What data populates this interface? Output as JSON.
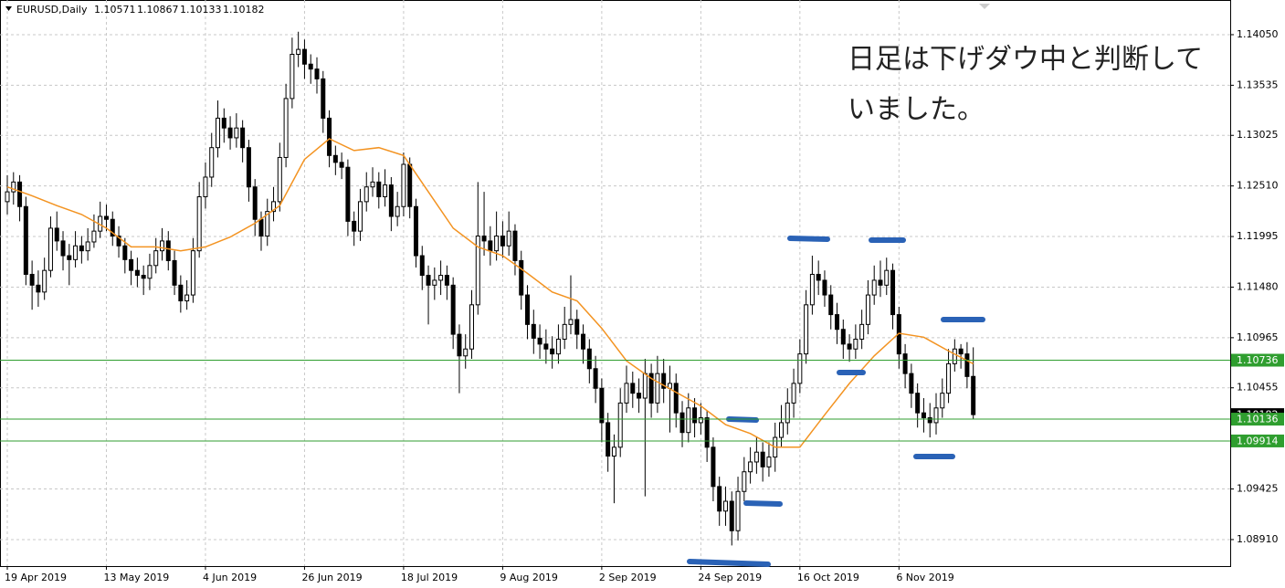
{
  "header": {
    "symbol": "EURUSD,Daily"
  },
  "annotation": {
    "lines": [
      "日足は下げダウ中と判断して",
      "いました。"
    ]
  },
  "chart_data": {
    "type": "candlestick",
    "categories": [
      "19 Apr 2019",
      null,
      null,
      null,
      null,
      null,
      null,
      null,
      null,
      null,
      null,
      null,
      null,
      null,
      null,
      null,
      "13 May 2019",
      null,
      null,
      null,
      null,
      null,
      null,
      null,
      null,
      null,
      null,
      null,
      null,
      null,
      null,
      null,
      "4 Jun 2019",
      null,
      null,
      null,
      null,
      null,
      null,
      null,
      null,
      null,
      null,
      null,
      null,
      null,
      null,
      null,
      "26 Jun 2019",
      null,
      null,
      null,
      null,
      null,
      null,
      null,
      null,
      null,
      null,
      null,
      null,
      null,
      null,
      null,
      "18 Jul 2019",
      null,
      null,
      null,
      null,
      null,
      null,
      null,
      null,
      null,
      null,
      null,
      null,
      null,
      null,
      null,
      "9 Aug 2019",
      null,
      null,
      null,
      null,
      null,
      null,
      null,
      null,
      null,
      null,
      null,
      null,
      null,
      null,
      null,
      "2 Sep 2019",
      null,
      null,
      null,
      null,
      null,
      null,
      null,
      null,
      null,
      null,
      null,
      null,
      null,
      null,
      null,
      "24 Sep 2019",
      null,
      null,
      null,
      null,
      null,
      null,
      null,
      null,
      null,
      null,
      null,
      null,
      null,
      null,
      null,
      "16 Oct 2019",
      null,
      null,
      null,
      null,
      null,
      null,
      null,
      null,
      null,
      null,
      null,
      null,
      null,
      null,
      null,
      "6 Nov 2019",
      null,
      null,
      null,
      null,
      null,
      null,
      null,
      null,
      null,
      null,
      null,
      null
    ],
    "open": [
      1.1235,
      1.1245,
      1.1255,
      1.123,
      1.1161,
      1.115,
      1.1143,
      1.1165,
      1.1208,
      1.1195,
      1.118,
      1.1176,
      1.119,
      1.1185,
      1.1194,
      1.1205,
      1.122,
      1.1217,
      1.12,
      1.119,
      1.1176,
      1.1165,
      1.116,
      1.1157,
      1.117,
      1.1185,
      1.1195,
      1.1175,
      1.115,
      1.1134,
      1.114,
      1.1185,
      1.124,
      1.126,
      1.129,
      1.132,
      1.131,
      1.13,
      1.131,
      1.129,
      1.125,
      1.1217,
      1.12,
      1.1225,
      1.1235,
      1.128,
      1.134,
      1.1385,
      1.139,
      1.1375,
      1.137,
      1.136,
      1.132,
      1.1282,
      1.1275,
      1.127,
      1.1215,
      1.1205,
      1.1235,
      1.125,
      1.1255,
      1.124,
      1.1252,
      1.122,
      1.123,
      1.1273,
      1.123,
      1.118,
      1.116,
      1.115,
      1.1155,
      1.116,
      1.115,
      1.11,
      1.1078,
      1.1085,
      1.113,
      1.12,
      1.1195,
      1.1185,
      1.12,
      1.119,
      1.1205,
      1.1175,
      1.114,
      1.111,
      1.1096,
      1.109,
      1.1085,
      1.108,
      1.1095,
      1.111,
      1.1115,
      1.11,
      1.1085,
      1.1065,
      1.1045,
      1.101,
      1.0976,
      1.0985,
      1.103,
      1.105,
      1.104,
      1.1035,
      1.106,
      1.103,
      1.106,
      1.1045,
      1.105,
      1.102,
      1.1,
      1.1025,
      1.101,
      1.1015,
      1.0985,
      1.0945,
      1.092,
      1.093,
      1.09,
      1.094,
      1.096,
      1.097,
      1.098,
      1.0965,
      1.0975,
      1.0995,
      1.101,
      1.103,
      1.105,
      1.108,
      1.113,
      1.1161,
      1.1155,
      1.114,
      1.112,
      1.1105,
      1.109,
      1.1085,
      1.1095,
      1.111,
      1.114,
      1.1155,
      1.115,
      1.1165,
      1.112,
      1.108,
      1.106,
      1.104,
      1.102,
      1.1015,
      1.101,
      1.1025,
      1.104,
      1.107,
      1.1085,
      1.108,
      1.10571
    ],
    "high": [
      1.1262,
      1.1265,
      1.1262,
      1.124,
      1.1175,
      1.1165,
      1.1178,
      1.122,
      1.1225,
      1.1205,
      1.1192,
      1.1205,
      1.12,
      1.1208,
      1.1222,
      1.1235,
      1.1232,
      1.1225,
      1.121,
      1.1198,
      1.1185,
      1.1178,
      1.117,
      1.1182,
      1.1198,
      1.1208,
      1.1205,
      1.1185,
      1.116,
      1.1155,
      1.1198,
      1.1255,
      1.1275,
      1.1305,
      1.1338,
      1.133,
      1.1322,
      1.1325,
      1.1318,
      1.1298,
      1.1258,
      1.1225,
      1.1238,
      1.125,
      1.1295,
      1.1355,
      1.1402,
      1.1408,
      1.14,
      1.1385,
      1.1382,
      1.1368,
      1.1328,
      1.1292,
      1.1285,
      1.1278,
      1.1225,
      1.1248,
      1.1265,
      1.127,
      1.1265,
      1.1268,
      1.126,
      1.1245,
      1.1285,
      1.128,
      1.1238,
      1.119,
      1.117,
      1.1168,
      1.1175,
      1.117,
      1.1158,
      1.111,
      1.11,
      1.1145,
      1.1255,
      1.1245,
      1.121,
      1.1225,
      1.1215,
      1.1225,
      1.1212,
      1.1185,
      1.115,
      1.1125,
      1.111,
      1.1105,
      1.1098,
      1.111,
      1.1128,
      1.116,
      1.1125,
      1.111,
      1.1095,
      1.1078,
      1.1055,
      1.102,
      1.0998,
      1.1045,
      1.1068,
      1.1062,
      1.1055,
      1.1075,
      1.107,
      1.1078,
      1.1075,
      1.1068,
      1.106,
      1.1032,
      1.104,
      1.1035,
      1.103,
      1.1022,
      1.0995,
      1.0955,
      1.0945,
      1.094,
      1.0955,
      1.0975,
      1.0985,
      1.0995,
      1.099,
      1.099,
      1.101,
      1.1028,
      1.1045,
      1.1065,
      1.1095,
      1.1145,
      1.118,
      1.1175,
      1.1165,
      1.115,
      1.1132,
      1.1115,
      1.11,
      1.111,
      1.1125,
      1.1155,
      1.117,
      1.1175,
      1.1178,
      1.1172,
      1.1128,
      1.109,
      1.107,
      1.105,
      1.1035,
      1.103,
      1.104,
      1.1055,
      1.1085,
      1.1095,
      1.109,
      1.1092,
      1.10867
    ],
    "low": [
      1.1222,
      1.1232,
      1.1215,
      1.115,
      1.1125,
      1.1128,
      1.1135,
      1.1158,
      1.1185,
      1.1165,
      1.115,
      1.1168,
      1.1172,
      1.1175,
      1.1188,
      1.1198,
      1.1205,
      1.119,
      1.1178,
      1.1162,
      1.115,
      1.1148,
      1.114,
      1.1145,
      1.1162,
      1.1175,
      1.1165,
      1.114,
      1.1122,
      1.1125,
      1.1132,
      1.1178,
      1.1228,
      1.125,
      1.128,
      1.1295,
      1.1288,
      1.129,
      1.1275,
      1.1235,
      1.12,
      1.1185,
      1.119,
      1.1215,
      1.1225,
      1.127,
      1.133,
      1.1372,
      1.136,
      1.1355,
      1.1345,
      1.1305,
      1.127,
      1.1262,
      1.1258,
      1.12,
      1.119,
      1.1195,
      1.1225,
      1.124,
      1.1228,
      1.123,
      1.1205,
      1.121,
      1.122,
      1.1218,
      1.1168,
      1.1145,
      1.111,
      1.1135,
      1.114,
      1.1135,
      1.1085,
      1.104,
      1.1065,
      1.1075,
      1.112,
      1.118,
      1.117,
      1.1175,
      1.1178,
      1.118,
      1.116,
      1.1125,
      1.1095,
      1.108,
      1.1075,
      1.107,
      1.1065,
      1.107,
      1.1085,
      1.11,
      1.1085,
      1.107,
      1.105,
      1.103,
      1.099,
      1.096,
      1.0928,
      1.0975,
      1.102,
      1.1025,
      1.102,
      1.0935,
      1.1015,
      1.102,
      1.103,
      1.1,
      1.1005,
      1.0985,
      1.099,
      1.0995,
      1.0998,
      1.097,
      1.093,
      1.0905,
      1.0905,
      1.0885,
      1.089,
      1.093,
      1.0948,
      1.0958,
      1.095,
      1.0955,
      1.096,
      1.0985,
      1.0998,
      1.1015,
      1.104,
      1.107,
      1.112,
      1.114,
      1.1128,
      1.1105,
      1.109,
      1.1075,
      1.1072,
      1.1075,
      1.1085,
      1.11,
      1.113,
      1.1138,
      1.114,
      1.1105,
      1.1065,
      1.1045,
      1.1025,
      1.1005,
      1.1,
      1.0995,
      1.0998,
      1.1015,
      1.103,
      1.1062,
      1.1065,
      1.1045,
      1.10133
    ],
    "close": [
      1.1245,
      1.1255,
      1.123,
      1.1161,
      1.115,
      1.1143,
      1.1165,
      1.1208,
      1.1195,
      1.118,
      1.1176,
      1.119,
      1.1185,
      1.1194,
      1.1205,
      1.122,
      1.1217,
      1.12,
      1.119,
      1.1176,
      1.1165,
      1.116,
      1.1157,
      1.117,
      1.1185,
      1.1195,
      1.1175,
      1.115,
      1.1134,
      1.114,
      1.1185,
      1.124,
      1.126,
      1.129,
      1.132,
      1.131,
      1.13,
      1.131,
      1.129,
      1.125,
      1.1217,
      1.12,
      1.1225,
      1.1235,
      1.128,
      1.134,
      1.1385,
      1.139,
      1.1375,
      1.137,
      1.136,
      1.132,
      1.1282,
      1.1275,
      1.127,
      1.1215,
      1.1205,
      1.1235,
      1.125,
      1.1255,
      1.124,
      1.1252,
      1.122,
      1.123,
      1.1273,
      1.123,
      1.118,
      1.116,
      1.115,
      1.1155,
      1.116,
      1.115,
      1.11,
      1.1078,
      1.1085,
      1.113,
      1.12,
      1.1195,
      1.1185,
      1.12,
      1.119,
      1.1205,
      1.1175,
      1.114,
      1.111,
      1.1096,
      1.109,
      1.1085,
      1.108,
      1.1095,
      1.111,
      1.1115,
      1.11,
      1.1085,
      1.1065,
      1.1045,
      1.101,
      1.0976,
      1.0985,
      1.103,
      1.105,
      1.104,
      1.1035,
      1.106,
      1.103,
      1.106,
      1.1045,
      1.105,
      1.102,
      1.1,
      1.1025,
      1.101,
      1.1015,
      1.0985,
      1.0945,
      1.092,
      1.093,
      1.09,
      1.094,
      1.096,
      1.097,
      1.098,
      1.0965,
      1.0975,
      1.0995,
      1.101,
      1.103,
      1.105,
      1.108,
      1.113,
      1.1161,
      1.1155,
      1.114,
      1.112,
      1.1105,
      1.109,
      1.1085,
      1.1095,
      1.111,
      1.114,
      1.1155,
      1.115,
      1.1165,
      1.112,
      1.108,
      1.106,
      1.104,
      1.102,
      1.1015,
      1.101,
      1.1025,
      1.104,
      1.107,
      1.1085,
      1.108,
      1.1057,
      1.10182
    ],
    "up_color": "#ffffff",
    "down_color": "#000000",
    "ma_x": [
      0,
      4,
      8,
      12,
      16,
      20,
      24,
      28,
      32,
      36,
      40,
      44,
      48,
      52,
      56,
      60,
      64,
      68,
      72,
      76,
      80,
      84,
      88,
      92,
      96,
      100,
      104,
      108,
      112,
      116,
      120,
      124,
      128,
      132,
      136,
      140,
      144,
      148,
      152,
      156
    ],
    "ma_values": [
      1.125,
      1.1241,
      1.1231,
      1.1222,
      1.1208,
      1.1189,
      1.1189,
      1.1185,
      1.1189,
      1.1199,
      1.1213,
      1.1231,
      1.1278,
      1.1299,
      1.1287,
      1.129,
      1.1282,
      1.1245,
      1.1208,
      1.1189,
      1.118,
      1.1162,
      1.1143,
      1.1134,
      1.1106,
      1.1073,
      1.1055,
      1.1041,
      1.1027,
      1.1008,
      1.0999,
      1.0985,
      1.0985,
      1.1018,
      1.105,
      1.1078,
      1.1101,
      1.1097,
      1.1083,
      1.107
    ],
    "ma_color": "#f39321",
    "hlines": [
      1.10736,
      1.10136,
      1.09914
    ],
    "hline_color": "#2f9e2f",
    "ylim": [
      1.0864,
      1.14403
    ],
    "yticks": [
      {
        "value": 1.1405,
        "label": "1.14050"
      },
      1.13535,
      1.13025,
      {
        "value": 1.1251,
        "label": "1.12510"
      },
      1.11995,
      {
        "value": 1.1148,
        "label": "1.11480"
      },
      1.10965,
      1.10455,
      1.09425,
      {
        "value": 1.0891,
        "label": "1.08910"
      }
    ],
    "grid": true
  }
}
